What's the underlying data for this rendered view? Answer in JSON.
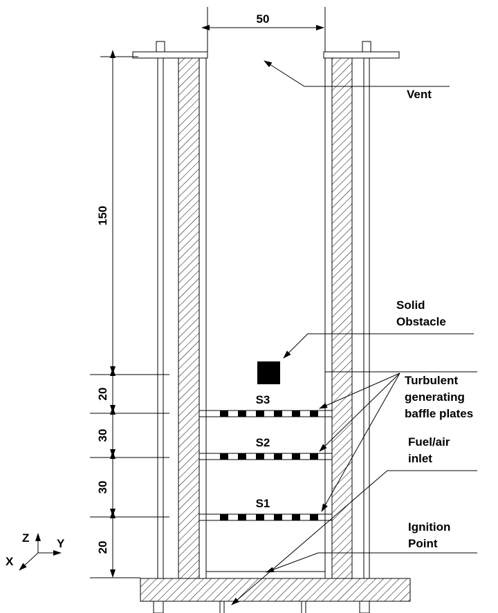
{
  "dimensions": {
    "width": "50",
    "vertical": [
      "150",
      "20",
      "30",
      "30",
      "20"
    ]
  },
  "plates": [
    "S3",
    "S2",
    "S1"
  ],
  "labels": {
    "vent": [
      "Vent"
    ],
    "obstacle": [
      "Solid",
      "Obstacle"
    ],
    "baffles": [
      "Turbulent",
      "generating",
      "baffle plates"
    ],
    "inlet": [
      "Fuel/air",
      "inlet"
    ],
    "ignition": [
      "Ignition",
      "Point"
    ]
  },
  "axes": {
    "z": "Z",
    "y": "Y",
    "x": "X"
  }
}
